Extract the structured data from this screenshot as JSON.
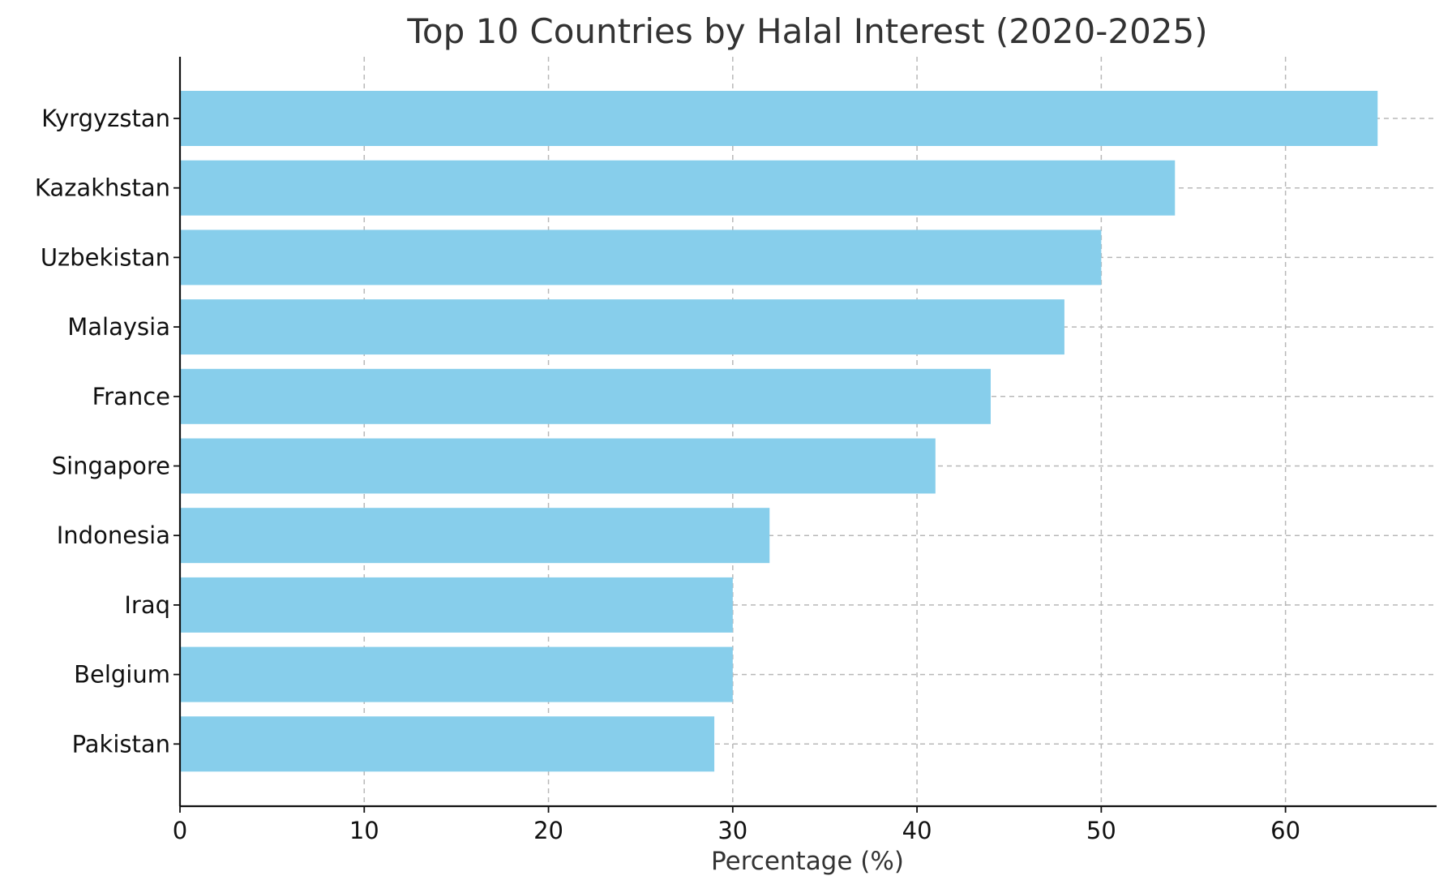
{
  "chart_data": {
    "type": "bar",
    "orientation": "horizontal",
    "title": "Top 10 Countries by Halal Interest (2020-2025)",
    "xlabel": "Percentage (%)",
    "ylabel": "",
    "categories": [
      "Kyrgyzstan",
      "Kazakhstan",
      "Uzbekistan",
      "Malaysia",
      "France",
      "Singapore",
      "Indonesia",
      "Iraq",
      "Belgium",
      "Pakistan"
    ],
    "values": [
      65,
      54,
      50,
      48,
      44,
      41,
      32,
      30,
      30,
      29
    ],
    "xlim": [
      0,
      68.2
    ],
    "xticks": [
      0,
      10,
      20,
      30,
      40,
      50,
      60
    ],
    "grid": true,
    "legend": "none",
    "colors": {
      "bar": "#87CEEB",
      "axis": "#111111",
      "grid": "#b8b8b8",
      "text": "#333333"
    }
  }
}
